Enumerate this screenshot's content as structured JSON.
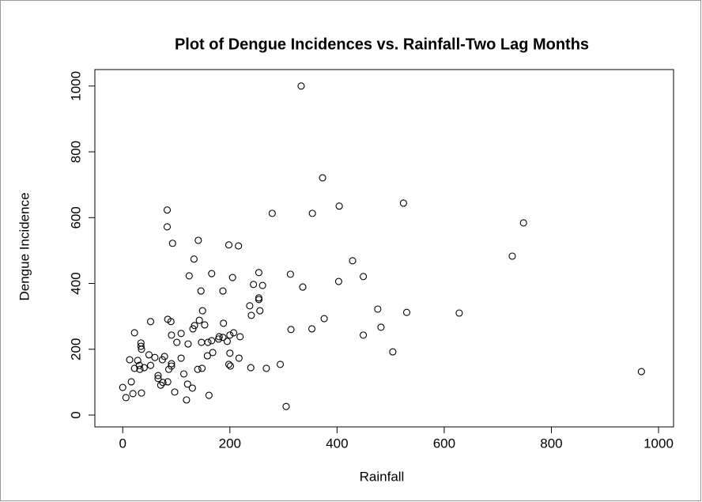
{
  "chart_data": {
    "type": "scatter",
    "title": "Plot of Dengue Incidences vs. Rainfall-Two Lag Months",
    "x_label": "Rainfall",
    "y_label": "Dengue Incidence",
    "xlim": [
      -52,
      1028
    ],
    "ylim": [
      -36,
      1050
    ],
    "xticks": [
      0,
      200,
      400,
      600,
      800,
      1000
    ],
    "yticks": [
      0,
      200,
      400,
      600,
      800,
      1000
    ],
    "color": "#000000",
    "x": [
      333,
      373,
      524,
      404,
      354,
      279,
      83,
      83,
      748,
      93,
      141,
      198,
      216,
      429,
      727,
      133,
      124,
      166,
      205,
      254,
      313,
      449,
      403,
      244,
      261,
      336,
      146,
      187,
      254,
      254,
      237,
      149,
      256,
      240,
      476,
      530,
      628,
      376,
      84,
      90,
      52,
      188,
      153,
      134,
      143,
      314,
      353,
      482,
      22,
      91,
      109,
      449,
      207,
      200,
      131,
      180,
      187,
      179,
      195,
      219,
      122,
      147,
      159,
      166,
      101,
      34,
      34,
      35,
      504,
      168,
      200,
      158,
      217,
      49,
      60,
      78,
      74,
      109,
      28,
      13,
      91,
      91,
      31,
      52,
      40,
      22,
      32,
      140,
      148,
      198,
      201,
      239,
      268,
      294,
      86,
      114,
      968,
      66,
      66,
      75,
      71,
      84,
      16,
      0,
      121,
      130,
      19,
      35,
      97,
      6,
      119,
      161,
      305
    ],
    "y": [
      1000,
      721,
      644,
      635,
      613,
      613,
      623,
      572,
      584,
      522,
      531,
      517,
      514,
      469,
      483,
      474,
      423,
      430,
      418,
      433,
      428,
      421,
      406,
      397,
      394,
      389,
      377,
      377,
      356,
      351,
      332,
      317,
      317,
      303,
      322,
      312,
      310,
      293,
      291,
      284,
      284,
      279,
      274,
      272,
      288,
      260,
      262,
      267,
      250,
      243,
      248,
      243,
      250,
      243,
      262,
      238,
      236,
      231,
      224,
      238,
      216,
      221,
      221,
      226,
      221,
      219,
      209,
      200,
      192,
      190,
      188,
      180,
      173,
      183,
      175,
      178,
      168,
      173,
      166,
      168,
      156,
      149,
      151,
      151,
      144,
      142,
      139,
      139,
      142,
      154,
      149,
      144,
      142,
      154,
      139,
      125,
      132,
      120,
      111,
      99,
      91,
      101,
      101,
      84,
      94,
      82,
      65,
      67,
      70,
      53,
      46,
      60,
      26
    ]
  }
}
